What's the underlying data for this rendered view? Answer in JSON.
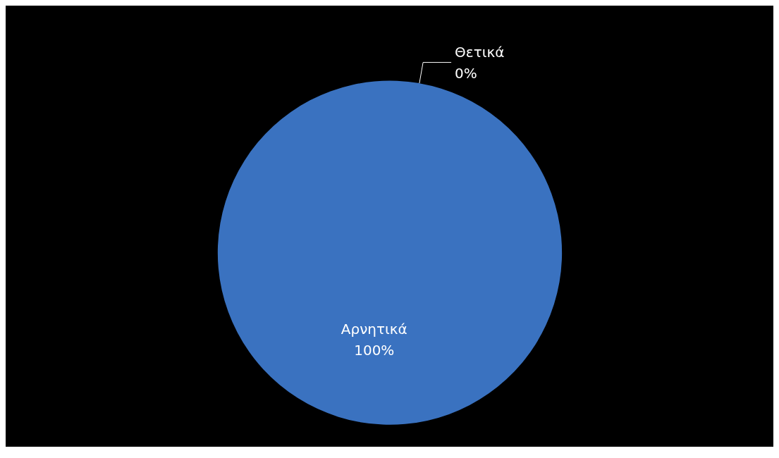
{
  "chart_data": {
    "type": "pie",
    "categories": [
      "Θετικά",
      "Αρνητικά"
    ],
    "values": [
      0,
      100
    ],
    "colors": [
      "#c0504d",
      "#3a72c0"
    ],
    "value_labels": [
      "0%",
      "100%"
    ],
    "legend": false
  }
}
